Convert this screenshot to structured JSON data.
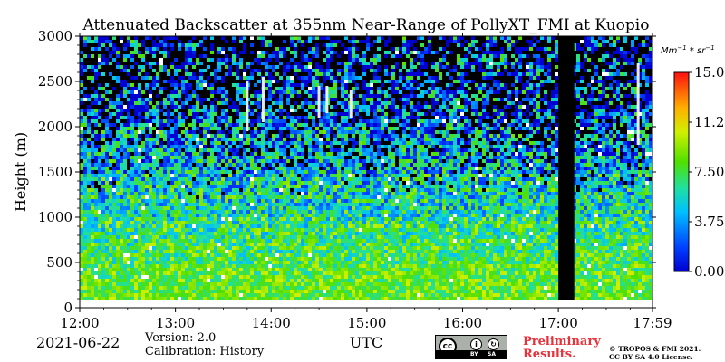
{
  "chart_data": {
    "type": "heatmap",
    "title": "Attenuated Backscatter at 355nm Near-Range of PollyXT_FMI at Kuopio",
    "xlabel": "UTC",
    "ylabel": "Height (m)",
    "x_ticks": [
      "12:00",
      "13:00",
      "14:00",
      "15:00",
      "16:00",
      "17:00",
      "17:59"
    ],
    "y_ticks": [
      0,
      500,
      1000,
      1500,
      2000,
      2500,
      3000
    ],
    "xlim": [
      "12:00",
      "17:59"
    ],
    "ylim": [
      0,
      3000
    ],
    "colorbar": {
      "unit_label": "Mm^-1*sr^-1",
      "ticks": [
        "15.00",
        "11.25",
        "7.50",
        "3.75",
        "0.00"
      ],
      "range": [
        0,
        15
      ],
      "colormap": "jet"
    },
    "profile_bands": [
      {
        "height_from": 0,
        "height_to": 80,
        "typical_value": 10.5
      },
      {
        "height_from": 80,
        "height_to": 500,
        "typical_value": 8.5
      },
      {
        "height_from": 500,
        "height_to": 1000,
        "typical_value": 7.5
      },
      {
        "height_from": 1000,
        "height_to": 1500,
        "typical_value": 6.0
      },
      {
        "height_from": 1500,
        "height_to": 2000,
        "typical_value": 4.5
      },
      {
        "height_from": 2000,
        "height_to": 2500,
        "typical_value": 3.0
      },
      {
        "height_from": 2500,
        "height_to": 3000,
        "typical_value": 2.0
      }
    ],
    "data_gap": {
      "from": "17:00",
      "to": "17:10"
    },
    "cloud_features": [
      {
        "time": "13:45",
        "height_from": 1950,
        "height_to": 2500
      },
      {
        "time": "13:55",
        "height_from": 2050,
        "height_to": 2550
      },
      {
        "time": "14:30",
        "height_from": 2100,
        "height_to": 2450
      },
      {
        "time": "14:35",
        "height_from": 2150,
        "height_to": 2450
      },
      {
        "time": "14:50",
        "height_from": 2100,
        "height_to": 2400
      },
      {
        "time": "17:50",
        "height_from": 1800,
        "height_to": 2700
      }
    ]
  },
  "footer": {
    "date": "2021-06-22",
    "version": "Version: 2.0",
    "calibration": "Calibration: History",
    "xunit": "UTC",
    "preliminary_line1": "Preliminary",
    "preliminary_line2": "Results.",
    "copyright_line1": "© TROPOS & FMI 2021.",
    "copyright_line2": "CC BY SA 4.0 License.",
    "license_badge": {
      "cc": "cc",
      "by": "BY",
      "sa": "SA"
    }
  },
  "colors": {
    "preliminary": "#e8333c",
    "gap": "#000000"
  }
}
